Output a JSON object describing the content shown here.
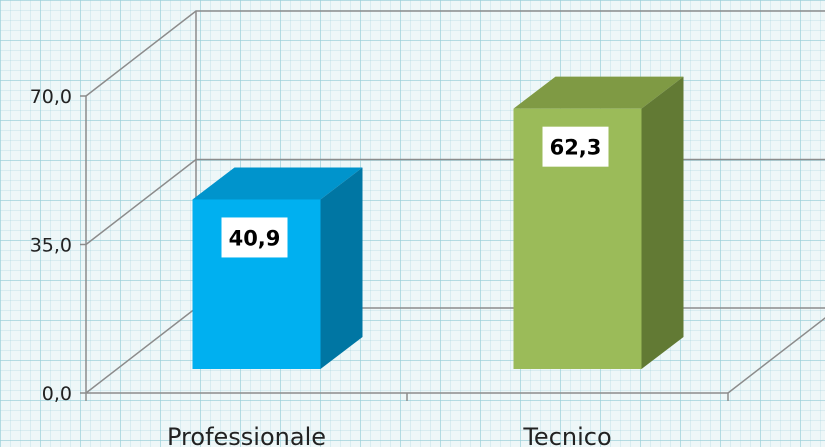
{
  "chart_data": {
    "type": "bar",
    "style": "3d-column",
    "categories": [
      "Professionale",
      "Tecnico"
    ],
    "values": [
      40.9,
      62.3
    ],
    "value_labels": [
      "40,9",
      "62,3"
    ],
    "ylim": [
      0,
      70
    ],
    "yticks": [
      0,
      35,
      70
    ],
    "ytick_labels": [
      "0,0",
      "35,0",
      "70,0"
    ],
    "grid": true,
    "legend": "none",
    "colors": {
      "Professionale": {
        "front": "#00b0f0",
        "side": "#0076a3",
        "top": "#0094cc"
      },
      "Tecnico": {
        "front": "#9bbb59",
        "side": "#627a34",
        "top": "#7f9a44"
      }
    }
  }
}
